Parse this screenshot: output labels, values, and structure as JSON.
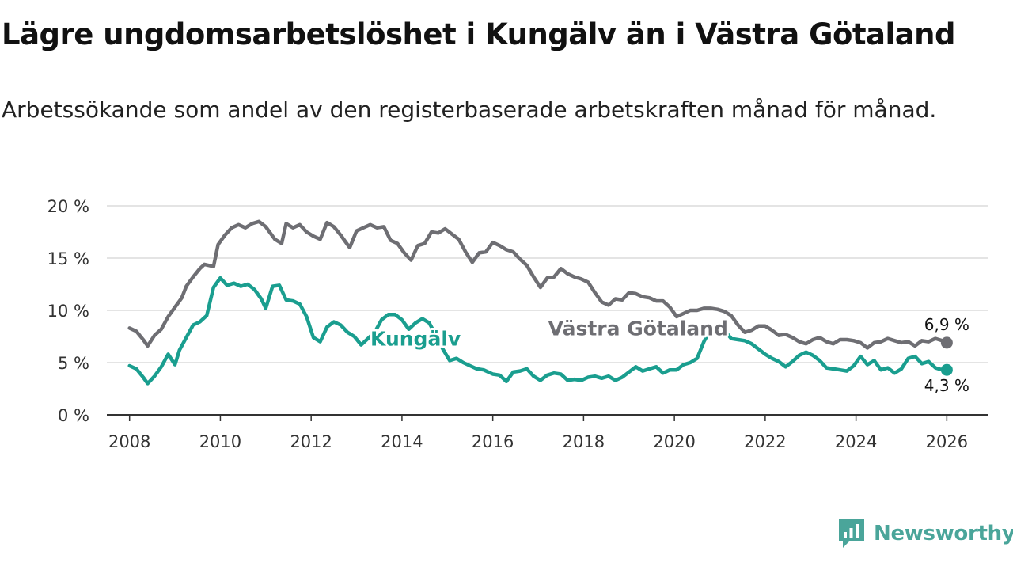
{
  "title": "Lägre ungdomsarbetslöshet i Kungälv än i Västra Götaland",
  "subtitle": "Arbetssökande som andel av den registerbaserade arbetskraften månad för månad.",
  "brand": {
    "name": "Newsworthy",
    "icon": "newsworthy-logo-icon",
    "color": "#4aa59a"
  },
  "chart_data": {
    "type": "line",
    "title": "Lägre ungdomsarbetslöshet i Kungälv än i Västra Götaland",
    "xlabel": "",
    "ylabel": "",
    "xlim": [
      2007.5,
      2026.9
    ],
    "ylim": [
      0,
      20
    ],
    "grid": true,
    "x_ticks": [
      2008,
      2010,
      2012,
      2014,
      2016,
      2018,
      2020,
      2022,
      2024,
      2026
    ],
    "y_ticks": [
      0,
      5,
      10,
      15,
      20
    ],
    "y_tick_labels": [
      "0 %",
      "5 %",
      "10 %",
      "15 %",
      "20 %"
    ],
    "series": [
      {
        "name": "Västra Götaland",
        "color": "#6e6e73",
        "end_label": "6,9 %",
        "points": [
          [
            2008.0,
            8.3
          ],
          [
            2008.15,
            8.0
          ],
          [
            2008.3,
            7.2
          ],
          [
            2008.4,
            6.6
          ],
          [
            2008.55,
            7.6
          ],
          [
            2008.7,
            8.2
          ],
          [
            2008.85,
            9.4
          ],
          [
            2009.0,
            10.3
          ],
          [
            2009.15,
            11.2
          ],
          [
            2009.25,
            12.3
          ],
          [
            2009.4,
            13.2
          ],
          [
            2009.55,
            14.0
          ],
          [
            2009.65,
            14.4
          ],
          [
            2009.85,
            14.2
          ],
          [
            2009.95,
            16.3
          ],
          [
            2010.1,
            17.2
          ],
          [
            2010.25,
            17.9
          ],
          [
            2010.4,
            18.2
          ],
          [
            2010.55,
            17.9
          ],
          [
            2010.7,
            18.3
          ],
          [
            2010.85,
            18.5
          ],
          [
            2011.0,
            18.0
          ],
          [
            2011.2,
            16.8
          ],
          [
            2011.35,
            16.4
          ],
          [
            2011.45,
            18.3
          ],
          [
            2011.6,
            17.9
          ],
          [
            2011.75,
            18.2
          ],
          [
            2011.9,
            17.5
          ],
          [
            2012.05,
            17.1
          ],
          [
            2012.2,
            16.8
          ],
          [
            2012.35,
            18.4
          ],
          [
            2012.5,
            18.0
          ],
          [
            2012.65,
            17.2
          ],
          [
            2012.85,
            16.0
          ],
          [
            2013.0,
            17.6
          ],
          [
            2013.15,
            17.9
          ],
          [
            2013.3,
            18.2
          ],
          [
            2013.45,
            17.9
          ],
          [
            2013.6,
            18.0
          ],
          [
            2013.75,
            16.7
          ],
          [
            2013.9,
            16.4
          ],
          [
            2014.05,
            15.5
          ],
          [
            2014.2,
            14.8
          ],
          [
            2014.35,
            16.2
          ],
          [
            2014.5,
            16.4
          ],
          [
            2014.65,
            17.5
          ],
          [
            2014.8,
            17.4
          ],
          [
            2014.95,
            17.8
          ],
          [
            2015.1,
            17.3
          ],
          [
            2015.25,
            16.8
          ],
          [
            2015.4,
            15.6
          ],
          [
            2015.55,
            14.6
          ],
          [
            2015.7,
            15.5
          ],
          [
            2015.85,
            15.6
          ],
          [
            2016.0,
            16.5
          ],
          [
            2016.15,
            16.2
          ],
          [
            2016.3,
            15.8
          ],
          [
            2016.45,
            15.6
          ],
          [
            2016.6,
            14.9
          ],
          [
            2016.75,
            14.3
          ],
          [
            2016.9,
            13.2
          ],
          [
            2017.05,
            12.2
          ],
          [
            2017.2,
            13.1
          ],
          [
            2017.35,
            13.2
          ],
          [
            2017.5,
            14.0
          ],
          [
            2017.65,
            13.5
          ],
          [
            2017.8,
            13.2
          ],
          [
            2017.95,
            13.0
          ],
          [
            2018.1,
            12.7
          ],
          [
            2018.25,
            11.7
          ],
          [
            2018.4,
            10.8
          ],
          [
            2018.55,
            10.5
          ],
          [
            2018.7,
            11.1
          ],
          [
            2018.85,
            11.0
          ],
          [
            2019.0,
            11.7
          ],
          [
            2019.15,
            11.6
          ],
          [
            2019.3,
            11.3
          ],
          [
            2019.45,
            11.2
          ],
          [
            2019.6,
            10.9
          ],
          [
            2019.75,
            10.9
          ],
          [
            2019.9,
            10.3
          ],
          [
            2020.05,
            9.4
          ],
          [
            2020.2,
            9.7
          ],
          [
            2020.35,
            10.0
          ],
          [
            2020.5,
            10.0
          ],
          [
            2020.65,
            10.2
          ],
          [
            2020.8,
            10.2
          ],
          [
            2020.95,
            10.1
          ],
          [
            2021.1,
            9.9
          ],
          [
            2021.25,
            9.5
          ],
          [
            2021.4,
            8.6
          ],
          [
            2021.55,
            7.9
          ],
          [
            2021.7,
            8.1
          ],
          [
            2021.85,
            8.5
          ],
          [
            2022.0,
            8.5
          ],
          [
            2022.15,
            8.1
          ],
          [
            2022.3,
            7.6
          ],
          [
            2022.45,
            7.7
          ],
          [
            2022.6,
            7.4
          ],
          [
            2022.75,
            7.0
          ],
          [
            2022.9,
            6.8
          ],
          [
            2023.05,
            7.2
          ],
          [
            2023.2,
            7.4
          ],
          [
            2023.35,
            7.0
          ],
          [
            2023.5,
            6.8
          ],
          [
            2023.65,
            7.2
          ],
          [
            2023.8,
            7.2
          ],
          [
            2023.95,
            7.1
          ],
          [
            2024.1,
            6.9
          ],
          [
            2024.25,
            6.4
          ],
          [
            2024.4,
            6.9
          ],
          [
            2024.55,
            7.0
          ],
          [
            2024.7,
            7.3
          ],
          [
            2024.85,
            7.1
          ],
          [
            2025.0,
            6.9
          ],
          [
            2025.15,
            7.0
          ],
          [
            2025.3,
            6.6
          ],
          [
            2025.45,
            7.1
          ],
          [
            2025.6,
            7.0
          ],
          [
            2025.75,
            7.3
          ],
          [
            2025.9,
            7.1
          ],
          [
            2026.0,
            6.9
          ]
        ]
      },
      {
        "name": "Kungälv",
        "color": "#1a9e8f",
        "end_label": "4,3 %",
        "points": [
          [
            2008.0,
            4.7
          ],
          [
            2008.15,
            4.4
          ],
          [
            2008.3,
            3.6
          ],
          [
            2008.4,
            3.0
          ],
          [
            2008.55,
            3.7
          ],
          [
            2008.7,
            4.6
          ],
          [
            2008.85,
            5.8
          ],
          [
            2009.0,
            4.8
          ],
          [
            2009.1,
            6.2
          ],
          [
            2009.25,
            7.4
          ],
          [
            2009.4,
            8.6
          ],
          [
            2009.55,
            8.9
          ],
          [
            2009.7,
            9.5
          ],
          [
            2009.85,
            12.2
          ],
          [
            2010.0,
            13.1
          ],
          [
            2010.15,
            12.4
          ],
          [
            2010.3,
            12.6
          ],
          [
            2010.45,
            12.3
          ],
          [
            2010.6,
            12.5
          ],
          [
            2010.75,
            12.0
          ],
          [
            2010.9,
            11.1
          ],
          [
            2011.0,
            10.2
          ],
          [
            2011.15,
            12.3
          ],
          [
            2011.3,
            12.4
          ],
          [
            2011.45,
            11.0
          ],
          [
            2011.6,
            10.9
          ],
          [
            2011.75,
            10.6
          ],
          [
            2011.9,
            9.4
          ],
          [
            2012.05,
            7.4
          ],
          [
            2012.2,
            7.0
          ],
          [
            2012.35,
            8.4
          ],
          [
            2012.5,
            8.9
          ],
          [
            2012.65,
            8.6
          ],
          [
            2012.8,
            7.9
          ],
          [
            2012.95,
            7.5
          ],
          [
            2013.1,
            6.7
          ],
          [
            2013.25,
            7.3
          ],
          [
            2013.4,
            7.9
          ],
          [
            2013.55,
            9.1
          ],
          [
            2013.7,
            9.6
          ],
          [
            2013.85,
            9.6
          ],
          [
            2014.0,
            9.1
          ],
          [
            2014.15,
            8.2
          ],
          [
            2014.3,
            8.8
          ],
          [
            2014.45,
            9.2
          ],
          [
            2014.6,
            8.8
          ],
          [
            2014.75,
            7.6
          ],
          [
            2014.9,
            6.3
          ],
          [
            2015.05,
            5.2
          ],
          [
            2015.2,
            5.4
          ],
          [
            2015.35,
            5.0
          ],
          [
            2015.5,
            4.7
          ],
          [
            2015.65,
            4.4
          ],
          [
            2015.8,
            4.3
          ],
          [
            2016.0,
            3.9
          ],
          [
            2016.15,
            3.8
          ],
          [
            2016.3,
            3.2
          ],
          [
            2016.45,
            4.1
          ],
          [
            2016.6,
            4.2
          ],
          [
            2016.75,
            4.4
          ],
          [
            2016.9,
            3.7
          ],
          [
            2017.05,
            3.3
          ],
          [
            2017.2,
            3.8
          ],
          [
            2017.35,
            4.0
          ],
          [
            2017.5,
            3.9
          ],
          [
            2017.65,
            3.3
          ],
          [
            2017.8,
            3.4
          ],
          [
            2017.95,
            3.3
          ],
          [
            2018.1,
            3.6
          ],
          [
            2018.25,
            3.7
          ],
          [
            2018.4,
            3.5
          ],
          [
            2018.55,
            3.7
          ],
          [
            2018.7,
            3.3
          ],
          [
            2018.85,
            3.6
          ],
          [
            2019.0,
            4.1
          ],
          [
            2019.15,
            4.6
          ],
          [
            2019.3,
            4.2
          ],
          [
            2019.45,
            4.4
          ],
          [
            2019.6,
            4.6
          ],
          [
            2019.75,
            4.0
          ],
          [
            2019.9,
            4.3
          ],
          [
            2020.05,
            4.3
          ],
          [
            2020.2,
            4.8
          ],
          [
            2020.35,
            5.0
          ],
          [
            2020.5,
            5.4
          ],
          [
            2020.65,
            7.0
          ],
          [
            2020.8,
            8.2
          ],
          [
            2020.95,
            8.6
          ],
          [
            2021.1,
            8.1
          ],
          [
            2021.25,
            7.3
          ],
          [
            2021.4,
            7.2
          ],
          [
            2021.55,
            7.1
          ],
          [
            2021.7,
            6.8
          ],
          [
            2021.85,
            6.3
          ],
          [
            2022.0,
            5.8
          ],
          [
            2022.15,
            5.4
          ],
          [
            2022.3,
            5.1
          ],
          [
            2022.45,
            4.6
          ],
          [
            2022.6,
            5.1
          ],
          [
            2022.75,
            5.7
          ],
          [
            2022.9,
            6.0
          ],
          [
            2023.05,
            5.7
          ],
          [
            2023.2,
            5.2
          ],
          [
            2023.35,
            4.5
          ],
          [
            2023.5,
            4.4
          ],
          [
            2023.65,
            4.3
          ],
          [
            2023.8,
            4.2
          ],
          [
            2023.95,
            4.7
          ],
          [
            2024.1,
            5.6
          ],
          [
            2024.25,
            4.8
          ],
          [
            2024.4,
            5.2
          ],
          [
            2024.55,
            4.3
          ],
          [
            2024.7,
            4.5
          ],
          [
            2024.85,
            4.0
          ],
          [
            2025.0,
            4.4
          ],
          [
            2025.15,
            5.4
          ],
          [
            2025.3,
            5.6
          ],
          [
            2025.45,
            4.9
          ],
          [
            2025.6,
            5.1
          ],
          [
            2025.75,
            4.5
          ],
          [
            2025.9,
            4.3
          ],
          [
            2026.0,
            4.3
          ]
        ]
      }
    ],
    "annotations": [
      {
        "text": "Västra Götaland",
        "series": "Västra Götaland",
        "x": 2019.2,
        "y": 8.3
      },
      {
        "text": "Kungälv",
        "series": "Kungälv",
        "x": 2014.3,
        "y": 7.3
      }
    ]
  }
}
